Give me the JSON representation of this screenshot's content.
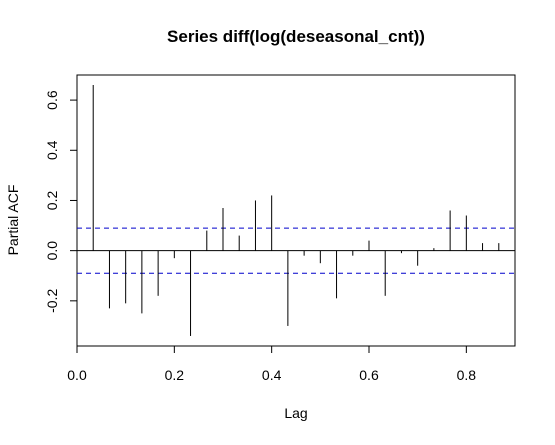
{
  "chart_data": {
    "type": "bar",
    "title": "Series  diff(log(deseasonal_cnt))",
    "xlabel": "Lag",
    "ylabel": "Partial ACF",
    "xlim": [
      0.0,
      0.9
    ],
    "ylim": [
      -0.38,
      0.7
    ],
    "x_ticks": [
      {
        "value": 0.0,
        "label": "0.0"
      },
      {
        "value": 0.2,
        "label": "0.2"
      },
      {
        "value": 0.4,
        "label": "0.4"
      },
      {
        "value": 0.6,
        "label": "0.6"
      },
      {
        "value": 0.8,
        "label": "0.8"
      }
    ],
    "y_ticks": [
      {
        "value": -0.2,
        "label": "-0.2"
      },
      {
        "value": 0.0,
        "label": "0.0"
      },
      {
        "value": 0.2,
        "label": "0.2"
      },
      {
        "value": 0.4,
        "label": "0.4"
      },
      {
        "value": 0.6,
        "label": "0.6"
      }
    ],
    "confidence_bound": 0.09,
    "grid": false,
    "colors": {
      "spikes": "#000000",
      "zero_line": "#000000",
      "confidence_lines": "#0000cc"
    },
    "lags": [
      0.0333,
      0.0667,
      0.1,
      0.1333,
      0.1667,
      0.2,
      0.2333,
      0.2667,
      0.3,
      0.3333,
      0.3667,
      0.4,
      0.4333,
      0.4667,
      0.5,
      0.5333,
      0.5667,
      0.6,
      0.6333,
      0.6667,
      0.7,
      0.7333,
      0.7667,
      0.8,
      0.8333,
      0.8667
    ],
    "values": [
      0.66,
      -0.23,
      -0.21,
      -0.25,
      -0.18,
      -0.03,
      -0.34,
      0.08,
      0.17,
      0.06,
      0.2,
      0.22,
      -0.3,
      -0.02,
      -0.05,
      -0.19,
      -0.02,
      0.04,
      -0.18,
      -0.01,
      -0.06,
      0.01,
      0.16,
      0.14,
      0.03,
      0.03
    ]
  }
}
